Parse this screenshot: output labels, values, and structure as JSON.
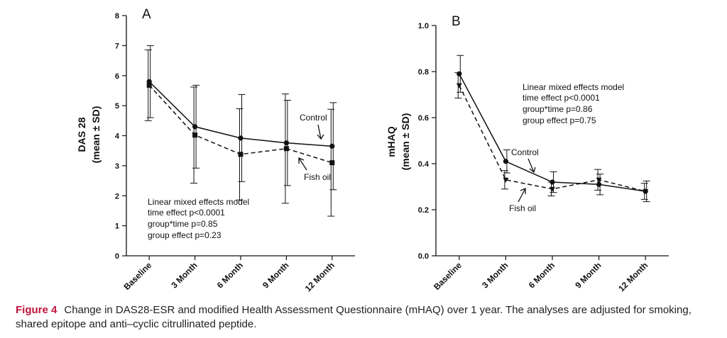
{
  "caption": {
    "label": "Figure 4",
    "text": "Change in DAS28-ESR and modified Health Assessment Questionnaire (mHAQ) over 1 year. The analyses are adjusted for smoking, shared epitope and anti–cyclic citrullinated peptide."
  },
  "colors": {
    "caption_label": "#c0143c",
    "ink": "#111111"
  },
  "chart_data": [
    {
      "type": "line",
      "panel": "A",
      "ylabel": "DAS 28",
      "ylabel2": "(mean ± SD)",
      "ylim": [
        0,
        8
      ],
      "yticks": [
        0,
        1,
        2,
        3,
        4,
        5,
        6,
        7,
        8
      ],
      "ytick_labels": [
        "0",
        "1",
        "2",
        "3",
        "4",
        "5",
        "6",
        "7",
        "8"
      ],
      "categories": [
        "Baseline",
        "3 Month",
        "6 Month",
        "9 Month",
        "12 Month"
      ],
      "grid": false,
      "series": [
        {
          "name": "Control",
          "line": "solid",
          "marker": "circle",
          "values": [
            5.8,
            4.3,
            3.92,
            3.76,
            3.65
          ],
          "sd": [
            1.2,
            1.38,
            1.45,
            1.42,
            1.45
          ]
        },
        {
          "name": "Fish oil",
          "line": "dashed",
          "marker": "square",
          "values": [
            5.68,
            4.02,
            3.38,
            3.57,
            3.1
          ],
          "sd": [
            1.18,
            1.6,
            1.52,
            1.82,
            1.78
          ]
        }
      ],
      "annotation": [
        "Linear mixed effects model",
        "time effect p<0.0001",
        "group*time p=0.85",
        "group effect p=0.23"
      ]
    },
    {
      "type": "line",
      "panel": "B",
      "ylabel": "mHAQ",
      "ylabel2": "(mean ± SD)",
      "ylim": [
        0,
        1.0
      ],
      "yticks": [
        0,
        0.2,
        0.4,
        0.6,
        0.8,
        1.0
      ],
      "ytick_labels": [
        "0.0",
        "0.2",
        "0.4",
        "0.6",
        "0.8",
        "1.0"
      ],
      "categories": [
        "Baseline",
        "3 Month",
        "6 Month",
        "9 Month",
        "12 Month"
      ],
      "grid": false,
      "series": [
        {
          "name": "Control",
          "line": "solid",
          "marker": "circle",
          "values": [
            0.79,
            0.41,
            0.32,
            0.31,
            0.28
          ],
          "sd": [
            0.08,
            0.05,
            0.045,
            0.045,
            0.045
          ]
        },
        {
          "name": "Fish oil",
          "line": "dashed",
          "marker": "triangle",
          "values": [
            0.74,
            0.33,
            0.29,
            0.33,
            0.28
          ],
          "sd": [
            0.055,
            0.04,
            0.03,
            0.045,
            0.035
          ]
        }
      ],
      "annotation": [
        "Linear mixed effects model",
        "time effect p<0.0001",
        "group*time p=0.86",
        "group effect p=0.75"
      ]
    }
  ]
}
